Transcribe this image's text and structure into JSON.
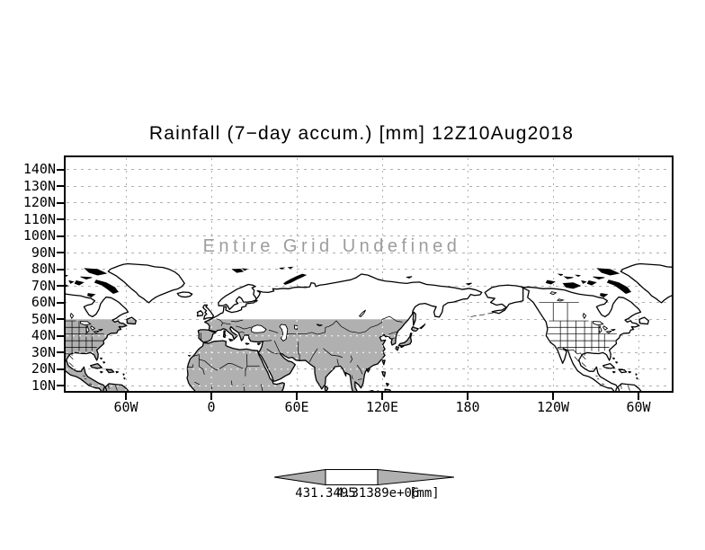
{
  "title": "Rainfall (7−day accum.) [mm] 12Z10Aug2018",
  "annotation": "Entire Grid Undefined",
  "axes": {
    "lat_ticks": [
      "140N",
      "130N",
      "120N",
      "110N",
      "100N",
      "90N",
      "80N",
      "70N",
      "60N",
      "50N",
      "40N",
      "30N",
      "20N",
      "10N"
    ],
    "lon_ticks": [
      "60W",
      "0",
      "60E",
      "120E",
      "180",
      "120W",
      "60W"
    ]
  },
  "colorbar": {
    "left_label": "431.3495",
    "right_label": "4.31389e+06",
    "units_label": "[mm]"
  },
  "colors": {
    "land_gray": "#b0b0b0",
    "coastline": "#000000",
    "gridline": "#b0b0b0",
    "annotation_text": "#9c9c9c",
    "colorbar_arrow": "#b0b0b0",
    "colorbar_box": "#ffffff"
  },
  "chart_data": {
    "type": "map",
    "title": "Rainfall (7−day accum.) [mm] 12Z10Aug2018",
    "status": "Entire Grid Undefined",
    "x_axis": {
      "ticks": [
        "60W",
        "0",
        "60E",
        "120E",
        "180",
        "120W",
        "60W"
      ]
    },
    "y_axis": {
      "ticks": [
        "140N",
        "130N",
        "120N",
        "110N",
        "100N",
        "90N",
        "80N",
        "70N",
        "60N",
        "50N",
        "40N",
        "30N",
        "20N",
        "10N"
      ]
    },
    "colorbar": {
      "labels": [
        "431.3495",
        "4.31389e+06"
      ],
      "units": "[mm]",
      "segments": [
        "arrow-left",
        "box",
        "arrow-right"
      ]
    },
    "values": [],
    "shaded_region": "land south of 50N between map left edge and ~143E shown gray",
    "grid": "dotted"
  }
}
